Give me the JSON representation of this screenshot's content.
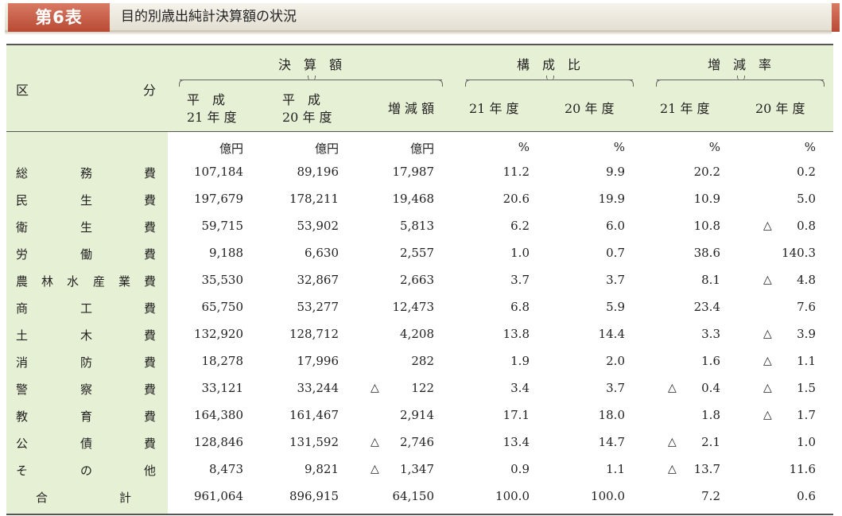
{
  "header": {
    "table_label": "第6表",
    "title": "目的別歳出純計決算額の状況"
  },
  "columns": {
    "category": [
      "区",
      "分"
    ],
    "kessan": "決　算　額",
    "kosei": "構　成　比",
    "zogen": "増　減　率",
    "h21_line1": "平　成",
    "h21_line2": "21 年 度",
    "h20_line1": "平　成",
    "h20_line2": "20 年 度",
    "zogen_gaku": "増 減 額",
    "k21": "21 年 度",
    "k20": "20 年 度",
    "z21": "21 年 度",
    "z20": "20 年 度"
  },
  "units": [
    "億円",
    "億円",
    "億円",
    "%",
    "%",
    "%",
    "%"
  ],
  "tri_symbol": "△",
  "rows": [
    {
      "name": [
        "総",
        "務",
        "費"
      ],
      "v": [
        "107,184",
        "89,196",
        "17,987",
        "11.2",
        "9.9",
        "20.2",
        "0.2"
      ],
      "neg": [
        false,
        false,
        false,
        false,
        false,
        false,
        false
      ]
    },
    {
      "name": [
        "民",
        "生",
        "費"
      ],
      "v": [
        "197,679",
        "178,211",
        "19,468",
        "20.6",
        "19.9",
        "10.9",
        "5.0"
      ],
      "neg": [
        false,
        false,
        false,
        false,
        false,
        false,
        false
      ]
    },
    {
      "name": [
        "衛",
        "生",
        "費"
      ],
      "v": [
        "59,715",
        "53,902",
        "5,813",
        "6.2",
        "6.0",
        "10.8",
        "0.8"
      ],
      "neg": [
        false,
        false,
        false,
        false,
        false,
        false,
        true
      ]
    },
    {
      "name": [
        "労",
        "働",
        "費"
      ],
      "v": [
        "9,188",
        "6,630",
        "2,557",
        "1.0",
        "0.7",
        "38.6",
        "140.3"
      ],
      "neg": [
        false,
        false,
        false,
        false,
        false,
        false,
        false
      ]
    },
    {
      "name": [
        "農",
        "林",
        "水",
        "産",
        "業",
        "費"
      ],
      "v": [
        "35,530",
        "32,867",
        "2,663",
        "3.7",
        "3.7",
        "8.1",
        "4.8"
      ],
      "neg": [
        false,
        false,
        false,
        false,
        false,
        false,
        true
      ]
    },
    {
      "name": [
        "商",
        "工",
        "費"
      ],
      "v": [
        "65,750",
        "53,277",
        "12,473",
        "6.8",
        "5.9",
        "23.4",
        "7.6"
      ],
      "neg": [
        false,
        false,
        false,
        false,
        false,
        false,
        false
      ]
    },
    {
      "name": [
        "土",
        "木",
        "費"
      ],
      "v": [
        "132,920",
        "128,712",
        "4,208",
        "13.8",
        "14.4",
        "3.3",
        "3.9"
      ],
      "neg": [
        false,
        false,
        false,
        false,
        false,
        false,
        true
      ]
    },
    {
      "name": [
        "消",
        "防",
        "費"
      ],
      "v": [
        "18,278",
        "17,996",
        "282",
        "1.9",
        "2.0",
        "1.6",
        "1.1"
      ],
      "neg": [
        false,
        false,
        false,
        false,
        false,
        false,
        true
      ]
    },
    {
      "name": [
        "警",
        "察",
        "費"
      ],
      "v": [
        "33,121",
        "33,244",
        "122",
        "3.4",
        "3.7",
        "0.4",
        "1.5"
      ],
      "neg": [
        false,
        false,
        true,
        false,
        false,
        true,
        true
      ]
    },
    {
      "name": [
        "教",
        "育",
        "費"
      ],
      "v": [
        "164,380",
        "161,467",
        "2,914",
        "17.1",
        "18.0",
        "1.8",
        "1.7"
      ],
      "neg": [
        false,
        false,
        false,
        false,
        false,
        false,
        true
      ]
    },
    {
      "name": [
        "公",
        "債",
        "費"
      ],
      "v": [
        "128,846",
        "131,592",
        "2,746",
        "13.4",
        "14.7",
        "2.1",
        "1.0"
      ],
      "neg": [
        false,
        false,
        true,
        false,
        false,
        true,
        false
      ]
    },
    {
      "name": [
        "そ",
        "の",
        "他"
      ],
      "v": [
        "8,473",
        "9,821",
        "1,347",
        "0.9",
        "1.1",
        "13.7",
        "11.6"
      ],
      "neg": [
        false,
        false,
        true,
        false,
        false,
        true,
        false
      ]
    }
  ],
  "total": {
    "name": [
      "合",
      "計"
    ],
    "v": [
      "961,064",
      "896,915",
      "64,150",
      "100.0",
      "100.0",
      "7.2",
      "0.6"
    ],
    "neg": [
      false,
      false,
      false,
      false,
      false,
      false,
      false
    ]
  }
}
